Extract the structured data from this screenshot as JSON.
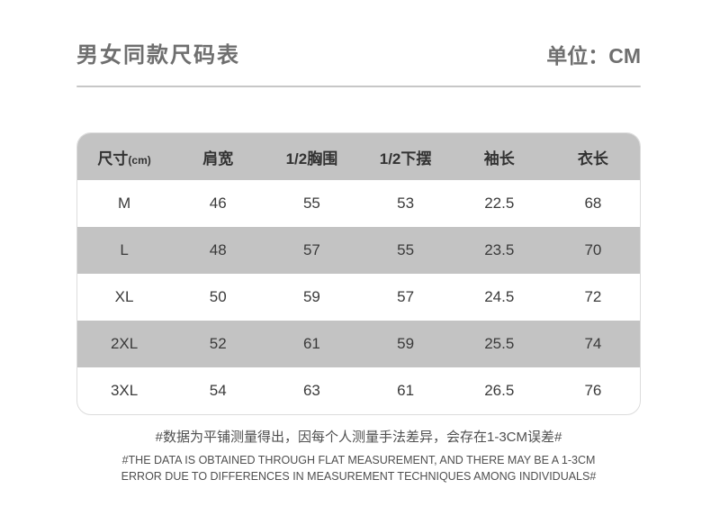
{
  "page": {
    "title": "男女同款尺码表",
    "unit_label": "单位：CM"
  },
  "table": {
    "size_header": {
      "main": "尺寸",
      "sub": "(cm)"
    }
  },
  "chart_data": {
    "type": "table",
    "title": "男女同款尺码表",
    "unit": "CM",
    "columns": [
      "尺寸(cm)",
      "肩宽",
      "1/2胸围",
      "1/2下摆",
      "袖长",
      "衣长"
    ],
    "rows": [
      [
        "M",
        46,
        55,
        53,
        22.5,
        68
      ],
      [
        "L",
        48,
        57,
        55,
        23.5,
        70
      ],
      [
        "XL",
        50,
        59,
        57,
        24.5,
        72
      ],
      [
        "2XL",
        52,
        61,
        59,
        25.5,
        74
      ],
      [
        "3XL",
        54,
        63,
        61,
        26.5,
        76
      ]
    ],
    "striped_row_indices": [
      1,
      3
    ],
    "notes": [
      "#数据为平铺测量得出，因每个人测量手法差异，会存在1-3CM误差#",
      "#THE DATA IS OBTAINED THROUGH FLAT MEASUREMENT, AND THERE MAY BE A 1-3CM ERROR DUE TO DIFFERENCES IN MEASUREMENT TECHNIQUES AMONG INDIVIDUALS#"
    ]
  },
  "notes": {
    "cn": "#数据为平铺测量得出，因每个人测量手法差异，会存在1-3CM误差#",
    "en_line1": "#THE DATA IS OBTAINED THROUGH FLAT MEASUREMENT, AND THERE MAY BE A 1-3CM",
    "en_line2": "ERROR DUE TO DIFFERENCES IN MEASUREMENT TECHNIQUES AMONG INDIVIDUALS#"
  },
  "colors": {
    "band_gray": "#c3c3c3",
    "divider_gray": "#c7c7c7",
    "table_border": "#dcdcdc",
    "title_text": "#6f6f6f",
    "table_text": "#3a3a3a",
    "note_text": "#4f4f4f",
    "background": "#ffffff"
  }
}
